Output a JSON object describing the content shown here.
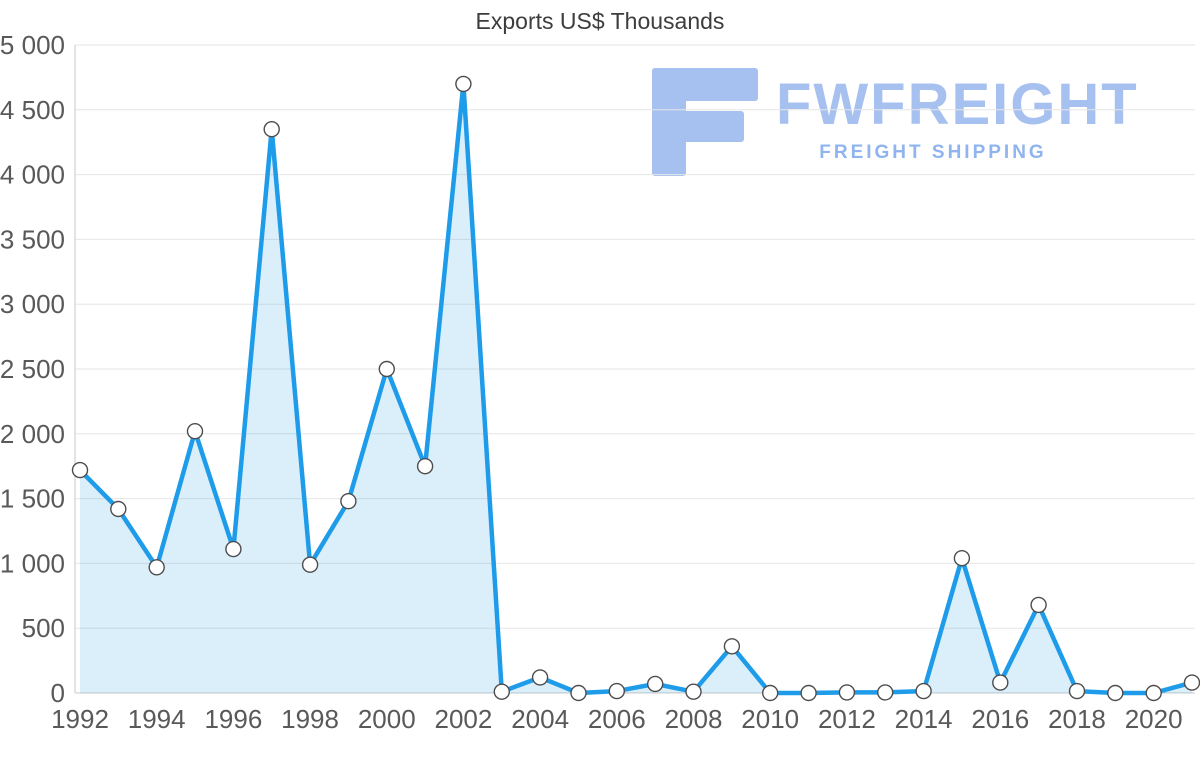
{
  "chart_data": {
    "type": "area",
    "title": "Exports US$ Thousands",
    "xlabel": "",
    "ylabel": "",
    "x": [
      1992,
      1993,
      1994,
      1995,
      1996,
      1997,
      1998,
      1999,
      2000,
      2001,
      2002,
      2003,
      2004,
      2005,
      2006,
      2007,
      2008,
      2009,
      2010,
      2011,
      2012,
      2013,
      2014,
      2015,
      2016,
      2017,
      2018,
      2019,
      2020,
      2021
    ],
    "values": [
      1720,
      1420,
      970,
      2020,
      1110,
      4350,
      990,
      1480,
      2500,
      1750,
      4700,
      10,
      120,
      0,
      15,
      70,
      10,
      360,
      0,
      0,
      5,
      5,
      15,
      1040,
      80,
      680,
      15,
      0,
      0,
      80
    ],
    "series_name": "Exports",
    "ylim": [
      0,
      5000
    ],
    "grid": "horizontal",
    "legend": "none",
    "yticks": {
      "values": [
        0,
        500,
        1000,
        1500,
        2000,
        2500,
        3000,
        3500,
        4000,
        4500,
        5000
      ],
      "labels": [
        "0",
        "500",
        "1 000",
        "1 500",
        "2 000",
        "2 500",
        "3 000",
        "3 500",
        "4 000",
        "4 500",
        "5 000"
      ]
    },
    "xticks": {
      "values": [
        1992,
        1994,
        1996,
        1998,
        2000,
        2002,
        2004,
        2006,
        2008,
        2010,
        2012,
        2014,
        2016,
        2018,
        2020
      ],
      "labels": [
        "1992",
        "1994",
        "1996",
        "1998",
        "2000",
        "2002",
        "2004",
        "2006",
        "2008",
        "2010",
        "2012",
        "2014",
        "2016",
        "2018",
        "2020"
      ]
    },
    "colors": {
      "line": "#1e9ce9",
      "fill": "#1e9ce9",
      "fill_opacity": "0.16",
      "marker_fill": "#ffffff",
      "marker_stroke": "#4d4d4d",
      "grid": "#e6e6e6",
      "axis": "#c9c9c9",
      "tick_text": "#595959",
      "title_text": "#3d3d3d"
    }
  },
  "watermark": {
    "brand": "FWFREIGHT",
    "tagline": "FREIGHT SHIPPING",
    "brand_color": "#a6c0f0",
    "tagline_color": "#8fb4ef"
  }
}
